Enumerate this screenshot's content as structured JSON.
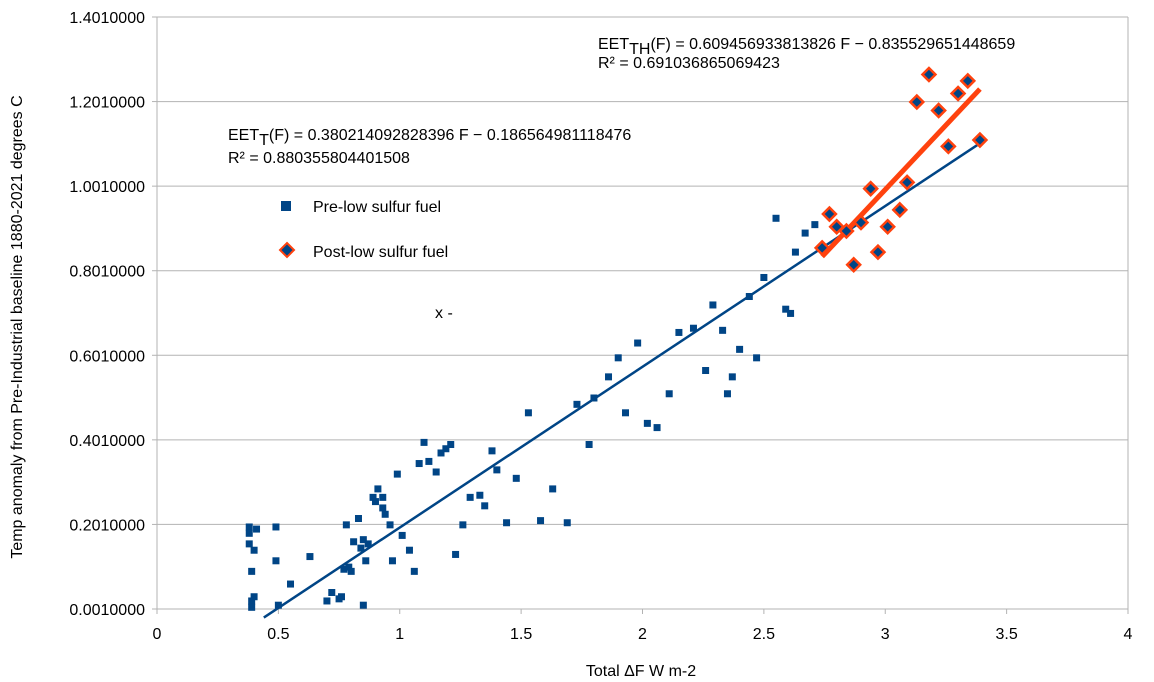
{
  "chart_data": {
    "type": "scatter",
    "xlabel": "Total ΔF W m-2",
    "ylabel": "Temp anomaly from Pre-Industrial baseline 1880-2021 degrees C",
    "xlim": [
      0,
      4
    ],
    "ylim": [
      0.001,
      1.401
    ],
    "x_ticks": [
      "0",
      "0.5",
      "1",
      "1.5",
      "2",
      "2.5",
      "3",
      "3.5",
      "4"
    ],
    "y_ticks": [
      "0.0010000",
      "0.2010000",
      "0.4010000",
      "0.6010000",
      "0.8010000",
      "1.0010000",
      "1.2010000",
      "1.4010000"
    ],
    "grid": "horizontal",
    "legend_position": "upper-left",
    "stray_text": "x -",
    "series": [
      {
        "name": "Pre-low sulfur fuel",
        "marker": "square",
        "color": "#004586",
        "points": [
          [
            0.38,
            0.195
          ],
          [
            0.38,
            0.155
          ],
          [
            0.38,
            0.18
          ],
          [
            0.39,
            0.09
          ],
          [
            0.39,
            0.02
          ],
          [
            0.39,
            0.005
          ],
          [
            0.4,
            0.03
          ],
          [
            0.4,
            0.14
          ],
          [
            0.41,
            0.19
          ],
          [
            0.49,
            0.195
          ],
          [
            0.49,
            0.115
          ],
          [
            0.5,
            0.01
          ],
          [
            0.55,
            0.06
          ],
          [
            0.63,
            0.125
          ],
          [
            0.7,
            0.02
          ],
          [
            0.72,
            0.04
          ],
          [
            0.75,
            0.025
          ],
          [
            0.76,
            0.03
          ],
          [
            0.77,
            0.095
          ],
          [
            0.78,
            0.2
          ],
          [
            0.79,
            0.1
          ],
          [
            0.8,
            0.09
          ],
          [
            0.81,
            0.16
          ],
          [
            0.83,
            0.215
          ],
          [
            0.84,
            0.145
          ],
          [
            0.85,
            0.01
          ],
          [
            0.85,
            0.165
          ],
          [
            0.86,
            0.115
          ],
          [
            0.87,
            0.155
          ],
          [
            0.89,
            0.265
          ],
          [
            0.9,
            0.255
          ],
          [
            0.91,
            0.285
          ],
          [
            0.93,
            0.265
          ],
          [
            0.93,
            0.24
          ],
          [
            0.94,
            0.225
          ],
          [
            0.96,
            0.2
          ],
          [
            0.97,
            0.115
          ],
          [
            0.99,
            0.32
          ],
          [
            1.01,
            0.175
          ],
          [
            1.04,
            0.14
          ],
          [
            1.06,
            0.09
          ],
          [
            1.08,
            0.345
          ],
          [
            1.1,
            0.395
          ],
          [
            1.12,
            0.35
          ],
          [
            1.15,
            0.325
          ],
          [
            1.17,
            0.37
          ],
          [
            1.19,
            0.38
          ],
          [
            1.21,
            0.39
          ],
          [
            1.23,
            0.13
          ],
          [
            1.26,
            0.2
          ],
          [
            1.29,
            0.265
          ],
          [
            1.33,
            0.27
          ],
          [
            1.35,
            0.245
          ],
          [
            1.38,
            0.375
          ],
          [
            1.4,
            0.33
          ],
          [
            1.44,
            0.205
          ],
          [
            1.48,
            0.31
          ],
          [
            1.53,
            0.465
          ],
          [
            1.58,
            0.21
          ],
          [
            1.63,
            0.285
          ],
          [
            1.69,
            0.205
          ],
          [
            1.73,
            0.485
          ],
          [
            1.78,
            0.39
          ],
          [
            1.8,
            0.5
          ],
          [
            1.86,
            0.55
          ],
          [
            1.9,
            0.595
          ],
          [
            1.93,
            0.465
          ],
          [
            1.98,
            0.63
          ],
          [
            2.02,
            0.44
          ],
          [
            2.06,
            0.43
          ],
          [
            2.11,
            0.51
          ],
          [
            2.15,
            0.655
          ],
          [
            2.21,
            0.665
          ],
          [
            2.26,
            0.565
          ],
          [
            2.29,
            0.72
          ],
          [
            2.33,
            0.66
          ],
          [
            2.35,
            0.51
          ],
          [
            2.37,
            0.55
          ],
          [
            2.4,
            0.615
          ],
          [
            2.44,
            0.74
          ],
          [
            2.47,
            0.595
          ],
          [
            2.5,
            0.785
          ],
          [
            2.55,
            0.925
          ],
          [
            2.59,
            0.71
          ],
          [
            2.61,
            0.7
          ],
          [
            2.63,
            0.845
          ],
          [
            2.67,
            0.89
          ],
          [
            2.71,
            0.91
          ]
        ]
      },
      {
        "name": "Post-low sulfur fuel",
        "marker": "diamond",
        "color": "#004586",
        "edge_color": "#ff420e",
        "points": [
          [
            2.74,
            0.855
          ],
          [
            2.77,
            0.935
          ],
          [
            2.8,
            0.905
          ],
          [
            2.84,
            0.895
          ],
          [
            2.87,
            0.815
          ],
          [
            2.9,
            0.915
          ],
          [
            2.94,
            0.995
          ],
          [
            2.97,
            0.845
          ],
          [
            3.01,
            0.905
          ],
          [
            3.06,
            0.945
          ],
          [
            3.09,
            1.01
          ],
          [
            3.13,
            1.2
          ],
          [
            3.18,
            1.265
          ],
          [
            3.22,
            1.18
          ],
          [
            3.26,
            1.095
          ],
          [
            3.3,
            1.22
          ],
          [
            3.34,
            1.25
          ],
          [
            3.39,
            1.11
          ]
        ]
      }
    ],
    "trendlines": [
      {
        "series": "Pre-low sulfur fuel",
        "color": "#004586",
        "slope": 0.380214092828396,
        "intercept": -0.186564981118476,
        "x_range": [
          0.44,
          3.39
        ],
        "equation_prefix": "EET",
        "equation_sub": "T",
        "equation_rest": "(F) = 0.380214092828396 F − 0.186564981118476",
        "r2_text": "R² = 0.880355804401508"
      },
      {
        "series": "Post-low sulfur fuel",
        "color": "#ff420e",
        "slope": 0.609456933813826,
        "intercept": -0.835529651448659,
        "x_range": [
          2.74,
          3.39
        ],
        "equation_prefix": "EET",
        "equation_sub": "TH",
        "equation_rest": "(F) = 0.609456933813826 F − 0.835529651448659",
        "r2_text": "R² = 0.691036865069423"
      }
    ]
  }
}
